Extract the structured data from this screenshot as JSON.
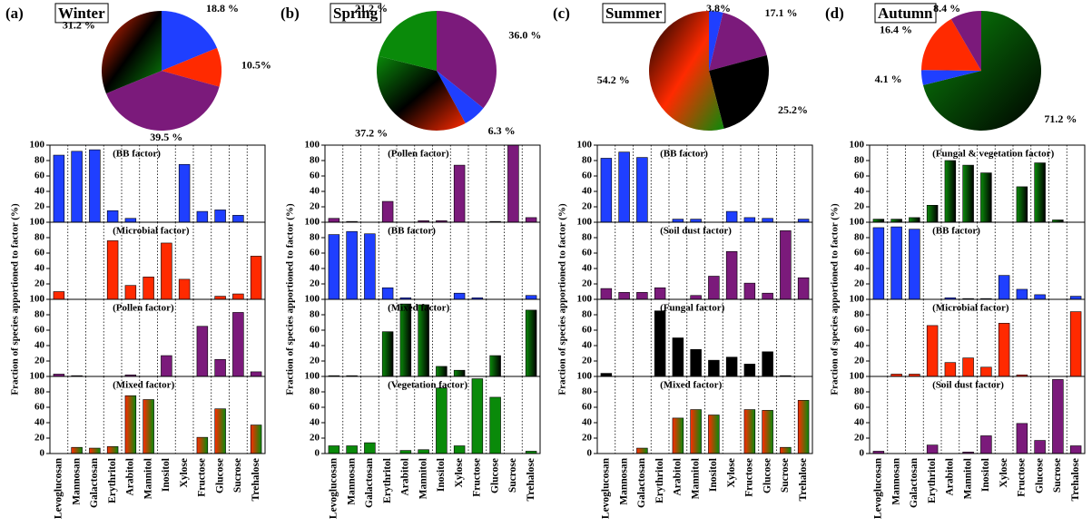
{
  "chart_data": [
    {
      "type": "pie",
      "panel": "(a)",
      "title": "Winter",
      "values": [
        18.8,
        10.5,
        39.5,
        31.2
      ],
      "value_labels": [
        "18.8 %",
        "10.5%",
        "39.5 %",
        "31.2 %"
      ],
      "colors": [
        "#1f3fff",
        "#ff2a00",
        "#7b1a7b",
        [
          "#ff2a00",
          "#000000",
          "#0a8a0a"
        ]
      ]
    },
    {
      "type": "bar",
      "ylabel": "Fraction of species apportioned to factor (%)",
      "categories": [
        "Levoglucosan",
        "Mannosan",
        "Galactosan",
        "Erythritol",
        "Arabitol",
        "Mannitol",
        "Inositol",
        "Xylose",
        "Fructose",
        "Glucose",
        "Sucrose",
        "Trehalose"
      ],
      "ylim": [
        0,
        100
      ],
      "yticks": [
        0,
        20,
        40,
        60,
        80,
        100
      ],
      "series": [
        {
          "name": "(BB factor)",
          "color": "#1f3fff",
          "values": [
            87,
            92,
            94,
            15,
            5,
            0,
            0,
            75,
            14,
            16,
            9,
            0
          ]
        },
        {
          "name": "(Microbial factor)",
          "color": "#ff2a00",
          "values": [
            10,
            0,
            0,
            76,
            18,
            29,
            73,
            26,
            0,
            4,
            7,
            56
          ]
        },
        {
          "name": "(Pollen factor)",
          "color": "#7b1a7b",
          "values": [
            3,
            1,
            0,
            0,
            2,
            0,
            27,
            0,
            65,
            22,
            83,
            6
          ]
        },
        {
          "name": "(Mixed factor)",
          "color": [
            "#ff2a00",
            "#0a8a0a"
          ],
          "values": [
            0,
            8,
            7,
            9,
            75,
            70,
            0,
            0,
            21,
            58,
            0,
            37
          ]
        }
      ]
    },
    {
      "type": "pie",
      "panel": "(b)",
      "title": "Spring",
      "values": [
        36.0,
        6.3,
        37.2,
        21.2
      ],
      "value_labels": [
        "36.0 %",
        "6.3 %",
        "37.2 %",
        "21.2 %"
      ],
      "colors": [
        "#7b1a7b",
        "#1f3fff",
        [
          "#0a8a0a",
          "#000000",
          "#ff2a00"
        ],
        "#0a8a0a"
      ]
    },
    {
      "type": "bar",
      "ylabel": "Fraction of species apportioned to factor (%)",
      "categories": [
        "Levoglucosan",
        "Mannosan",
        "Galactosan",
        "Erythritol",
        "Arabitol",
        "Mannitol",
        "Inositol",
        "Xylose",
        "Fructose",
        "Glucose",
        "Sucrose",
        "Trehalose"
      ],
      "ylim": [
        0,
        100
      ],
      "yticks": [
        0,
        20,
        40,
        60,
        80,
        100
      ],
      "series": [
        {
          "name": "(Pollen factor)",
          "color": "#7b1a7b",
          "values": [
            5,
            1,
            0,
            27,
            0,
            2,
            2,
            74,
            0,
            1,
            100,
            6
          ]
        },
        {
          "name": "(BB factor)",
          "color": "#1f3fff",
          "values": [
            84,
            88,
            85,
            15,
            2,
            0,
            0,
            8,
            2,
            0,
            0,
            5
          ]
        },
        {
          "name": "(Mixed factor)",
          "color": [
            "#0a8a0a",
            "#000000"
          ],
          "values": [
            1,
            1,
            0,
            58,
            94,
            93,
            13,
            8,
            0,
            27,
            0,
            86
          ]
        },
        {
          "name": "(Vegetation factor)",
          "color": "#0a8a0a",
          "values": [
            10,
            10,
            14,
            0,
            4,
            5,
            85,
            10,
            97,
            73,
            0,
            3
          ]
        }
      ]
    },
    {
      "type": "pie",
      "panel": "(c)",
      "title": "Summer",
      "values": [
        3.8,
        17.1,
        25.2,
        54.2
      ],
      "value_labels": [
        "3.8%",
        "17.1 %",
        "25.2%",
        "54.2 %"
      ],
      "colors": [
        "#1f3fff",
        "#7b1a7b",
        "#000000",
        [
          "#000000",
          "#ff2a00",
          "#0a8a0a"
        ]
      ]
    },
    {
      "type": "bar",
      "ylabel": "Fraction of species apportioned to factor (%)",
      "categories": [
        "Levoglucosan",
        "Mannosan",
        "Galactosan",
        "Erythritol",
        "Arabitol",
        "Mannitol",
        "Inositol",
        "Xylose",
        "Fructose",
        "Glucose",
        "Sucrose",
        "Trehalose"
      ],
      "ylim": [
        0,
        100
      ],
      "yticks": [
        0,
        20,
        40,
        60,
        80,
        100
      ],
      "series": [
        {
          "name": "(BB factor)",
          "color": "#1f3fff",
          "values": [
            83,
            91,
            84,
            0,
            4,
            4,
            0,
            14,
            6,
            5,
            0,
            4
          ]
        },
        {
          "name": "(Soil dust factor)",
          "color": "#7b1a7b",
          "values": [
            14,
            9,
            9,
            15,
            0,
            5,
            30,
            62,
            21,
            8,
            89,
            28
          ]
        },
        {
          "name": "(Fungal factor)",
          "color": "#000000",
          "values": [
            4,
            0,
            0,
            85,
            50,
            35,
            21,
            25,
            16,
            32,
            1,
            0
          ]
        },
        {
          "name": "(Mixed factor)",
          "color": [
            "#ff2a00",
            "#0a8a0a"
          ],
          "values": [
            0,
            0,
            7,
            0,
            46,
            57,
            50,
            0,
            57,
            56,
            8,
            69
          ]
        }
      ]
    },
    {
      "type": "pie",
      "panel": "(d)",
      "title": "Autumn",
      "values": [
        71.2,
        4.1,
        16.4,
        8.4
      ],
      "value_labels": [
        "71.2 %",
        "4.1 %",
        "16.4 %",
        "8.4 %"
      ],
      "colors": [
        [
          "#0a8a0a",
          "#000000"
        ],
        "#1f3fff",
        "#ff2a00",
        "#7b1a7b"
      ]
    },
    {
      "type": "bar",
      "ylabel": "Fraction of species apportioned to factor (%)",
      "categories": [
        "Levoglucosan",
        "Mannosan",
        "Galactosan",
        "Erythritol",
        "Arabitol",
        "Mannitol",
        "Inositol",
        "Xylose",
        "Fructose",
        "Glucose",
        "Sucrose",
        "Trehalose"
      ],
      "ylim": [
        0,
        100
      ],
      "yticks": [
        0,
        20,
        40,
        60,
        80,
        100
      ],
      "series": [
        {
          "name": "(Fungal & vegetation factor)",
          "color": [
            "#0a8a0a",
            "#000000"
          ],
          "values": [
            4,
            4,
            6,
            22,
            80,
            74,
            64,
            0,
            46,
            77,
            3,
            0
          ]
        },
        {
          "name": "(BB factor)",
          "color": "#1f3fff",
          "values": [
            93,
            94,
            91,
            0,
            2,
            1,
            1,
            31,
            13,
            6,
            0,
            4
          ]
        },
        {
          "name": "(Microbial factor)",
          "color": "#ff2a00",
          "values": [
            0,
            3,
            3,
            66,
            18,
            24,
            12,
            69,
            2,
            0,
            0,
            84
          ]
        },
        {
          "name": "(Soil dust factor)",
          "color": "#7b1a7b",
          "values": [
            3,
            0,
            0,
            11,
            0,
            2,
            23,
            0,
            39,
            17,
            96,
            10
          ]
        }
      ]
    }
  ]
}
